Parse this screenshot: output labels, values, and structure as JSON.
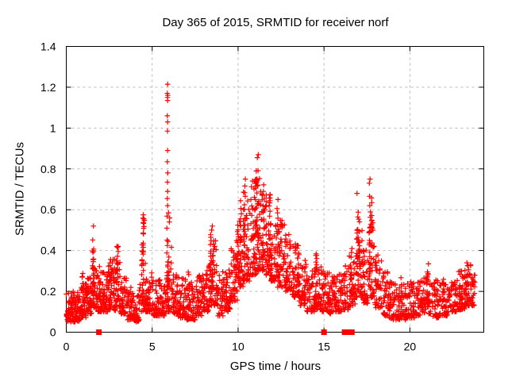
{
  "chart_data": {
    "type": "scatter",
    "title": "Day 365 of 2015, SRMTID for receiver norf",
    "xlabel": "GPS time / hours",
    "ylabel": "SRMTID / TECUs",
    "xlim": [
      0,
      24.3
    ],
    "ylim": [
      0,
      1.4
    ],
    "xticks": [
      0,
      5,
      10,
      15,
      20
    ],
    "yticks": [
      0,
      0.2,
      0.4,
      0.6,
      0.8,
      1,
      1.2,
      1.4
    ],
    "grid": true,
    "legend": "none",
    "marker": "plus",
    "marker_color": "#ff0000",
    "grid_color": "#b8b8b8",
    "axis_color": "#000000",
    "background": "#ffffff",
    "envelope_bands": [
      [
        0.0,
        0.4,
        0.05,
        0.2,
        55
      ],
      [
        0.4,
        0.8,
        0.05,
        0.2,
        55
      ],
      [
        0.8,
        1.2,
        0.07,
        0.24,
        55
      ],
      [
        1.2,
        1.55,
        0.09,
        0.27,
        45
      ],
      [
        1.55,
        1.75,
        0.12,
        0.35,
        25
      ],
      [
        1.75,
        2.1,
        0.1,
        0.32,
        45
      ],
      [
        2.1,
        2.45,
        0.1,
        0.3,
        45
      ],
      [
        2.45,
        2.8,
        0.11,
        0.36,
        45
      ],
      [
        2.8,
        3.15,
        0.1,
        0.36,
        45
      ],
      [
        3.15,
        3.55,
        0.09,
        0.28,
        45
      ],
      [
        3.55,
        3.95,
        0.06,
        0.22,
        45
      ],
      [
        3.95,
        4.25,
        0.05,
        0.18,
        35
      ],
      [
        4.25,
        4.65,
        0.1,
        0.38,
        40
      ],
      [
        4.65,
        5.0,
        0.1,
        0.3,
        40
      ],
      [
        5.0,
        5.45,
        0.08,
        0.26,
        50
      ],
      [
        5.45,
        5.8,
        0.08,
        0.24,
        40
      ],
      [
        5.8,
        6.15,
        0.1,
        0.45,
        40
      ],
      [
        6.15,
        6.5,
        0.09,
        0.3,
        40
      ],
      [
        6.5,
        7.0,
        0.07,
        0.27,
        55
      ],
      [
        7.0,
        7.5,
        0.06,
        0.25,
        55
      ],
      [
        7.5,
        8.0,
        0.08,
        0.28,
        55
      ],
      [
        8.0,
        8.35,
        0.1,
        0.33,
        40
      ],
      [
        8.35,
        8.75,
        0.13,
        0.45,
        45
      ],
      [
        8.75,
        9.15,
        0.08,
        0.3,
        40
      ],
      [
        9.15,
        9.55,
        0.1,
        0.33,
        45
      ],
      [
        9.55,
        9.95,
        0.15,
        0.42,
        45
      ],
      [
        9.95,
        10.3,
        0.22,
        0.55,
        45
      ],
      [
        10.3,
        10.7,
        0.25,
        0.68,
        50
      ],
      [
        10.7,
        11.1,
        0.28,
        0.75,
        55
      ],
      [
        11.1,
        11.5,
        0.3,
        0.76,
        55
      ],
      [
        11.5,
        11.9,
        0.28,
        0.68,
        50
      ],
      [
        11.9,
        12.3,
        0.25,
        0.6,
        48
      ],
      [
        12.3,
        12.7,
        0.22,
        0.55,
        48
      ],
      [
        12.7,
        13.1,
        0.2,
        0.5,
        45
      ],
      [
        13.1,
        13.55,
        0.17,
        0.44,
        45
      ],
      [
        13.55,
        14.0,
        0.13,
        0.37,
        45
      ],
      [
        14.0,
        14.45,
        0.1,
        0.3,
        42
      ],
      [
        14.45,
        14.85,
        0.11,
        0.33,
        42
      ],
      [
        14.85,
        15.25,
        0.1,
        0.3,
        42
      ],
      [
        15.25,
        15.65,
        0.09,
        0.28,
        42
      ],
      [
        15.65,
        16.05,
        0.1,
        0.3,
        42
      ],
      [
        16.05,
        16.45,
        0.11,
        0.33,
        42
      ],
      [
        16.45,
        16.85,
        0.13,
        0.4,
        42
      ],
      [
        16.85,
        17.25,
        0.17,
        0.5,
        42
      ],
      [
        17.25,
        17.6,
        0.14,
        0.42,
        38
      ],
      [
        17.6,
        17.95,
        0.17,
        0.55,
        40
      ],
      [
        17.95,
        18.35,
        0.12,
        0.38,
        42
      ],
      [
        18.35,
        18.8,
        0.08,
        0.3,
        45
      ],
      [
        18.8,
        19.3,
        0.06,
        0.25,
        48
      ],
      [
        19.3,
        19.8,
        0.06,
        0.24,
        48
      ],
      [
        19.8,
        20.3,
        0.07,
        0.25,
        48
      ],
      [
        20.3,
        20.75,
        0.08,
        0.26,
        45
      ],
      [
        20.75,
        21.2,
        0.09,
        0.3,
        42
      ],
      [
        21.2,
        21.7,
        0.07,
        0.26,
        48
      ],
      [
        21.7,
        22.2,
        0.08,
        0.26,
        48
      ],
      [
        22.2,
        22.7,
        0.1,
        0.28,
        48
      ],
      [
        22.7,
        23.2,
        0.11,
        0.3,
        48
      ],
      [
        23.2,
        23.55,
        0.13,
        0.33,
        38
      ],
      [
        23.55,
        23.8,
        0.13,
        0.28,
        25
      ]
    ],
    "spike_columns": [
      [
        1.56,
        0.3,
        0.49,
        10
      ],
      [
        1.58,
        0.15,
        0.35,
        8
      ],
      [
        2.98,
        0.3,
        0.43,
        7
      ],
      [
        2.6,
        0.15,
        0.4,
        8
      ],
      [
        1.95,
        0.12,
        0.38,
        8
      ],
      [
        0.92,
        0.1,
        0.3,
        6
      ],
      [
        4.45,
        0.15,
        0.45,
        12
      ],
      [
        4.5,
        0.25,
        0.56,
        12
      ],
      [
        5.9,
        0.15,
        0.58,
        16
      ],
      [
        7.1,
        0.1,
        0.31,
        8
      ],
      [
        8.45,
        0.15,
        0.48,
        12
      ],
      [
        8.55,
        0.18,
        0.45,
        8
      ],
      [
        9.95,
        0.25,
        0.55,
        10
      ],
      [
        10.15,
        0.3,
        0.68,
        12
      ],
      [
        10.35,
        0.32,
        0.73,
        12
      ],
      [
        11.05,
        0.35,
        0.8,
        16
      ],
      [
        11.15,
        0.4,
        0.84,
        12
      ],
      [
        11.5,
        0.3,
        0.78,
        10
      ],
      [
        11.85,
        0.3,
        0.72,
        10
      ],
      [
        12.3,
        0.25,
        0.62,
        10
      ],
      [
        13.5,
        0.18,
        0.42,
        9
      ],
      [
        14.55,
        0.15,
        0.4,
        12
      ],
      [
        15.3,
        0.1,
        0.33,
        8
      ],
      [
        16.6,
        0.15,
        0.42,
        8
      ],
      [
        16.95,
        0.25,
        0.64,
        14
      ],
      [
        17.05,
        0.2,
        0.58,
        10
      ],
      [
        17.65,
        0.25,
        0.72,
        12
      ],
      [
        17.75,
        0.28,
        0.66,
        10
      ],
      [
        19.5,
        0.08,
        0.3,
        8
      ],
      [
        21.05,
        0.12,
        0.32,
        9
      ],
      [
        22.9,
        0.1,
        0.3,
        8
      ],
      [
        23.3,
        0.15,
        0.33,
        9
      ]
    ],
    "outlier_points": [
      [
        5.9,
        1.215
      ],
      [
        5.88,
        1.17
      ],
      [
        5.91,
        1.16
      ],
      [
        5.89,
        1.15
      ],
      [
        5.9,
        1.135
      ],
      [
        5.88,
        1.06
      ],
      [
        5.9,
        1.03
      ],
      [
        5.89,
        0.985
      ],
      [
        5.9,
        0.89
      ],
      [
        5.88,
        0.835
      ],
      [
        5.91,
        0.78
      ],
      [
        5.89,
        0.735
      ],
      [
        5.9,
        0.69
      ],
      [
        5.88,
        0.655
      ],
      [
        5.9,
        0.62
      ],
      [
        5.95,
        0.585
      ],
      [
        6.02,
        0.56
      ],
      [
        6.0,
        0.54
      ],
      [
        4.48,
        0.575
      ],
      [
        4.52,
        0.555
      ],
      [
        1.58,
        0.52
      ],
      [
        8.5,
        0.52
      ],
      [
        8.46,
        0.5
      ],
      [
        11.18,
        0.87
      ],
      [
        11.12,
        0.855
      ],
      [
        10.42,
        0.75
      ],
      [
        17.68,
        0.75
      ],
      [
        17.64,
        0.73
      ],
      [
        16.92,
        0.68
      ],
      [
        12.32,
        0.65
      ],
      [
        21.08,
        0.335
      ],
      [
        23.32,
        0.34
      ]
    ],
    "baseline_square_markers": [
      1.9,
      15.0,
      16.2,
      16.5,
      16.62
    ]
  }
}
